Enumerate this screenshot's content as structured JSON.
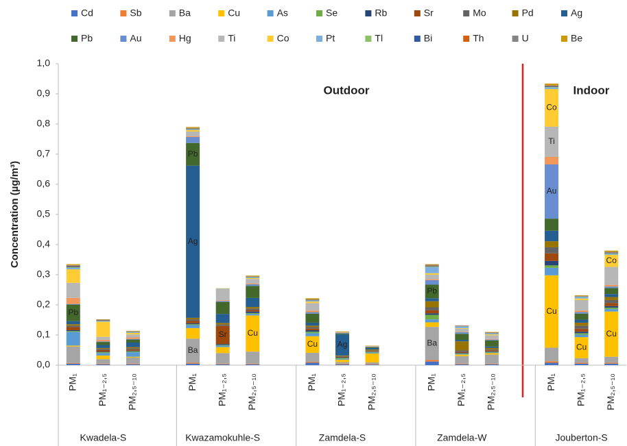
{
  "chart_data": {
    "type": "stacked_bar",
    "y_label": "Concentration (µg/m³)",
    "annotations": [
      "Outdoor",
      "Indoor"
    ],
    "categories": [
      "PM₁",
      "PM₁₋₂,₅",
      "PM₂,₅₋₁₀",
      null,
      "PM₁",
      "PM₁₋₂,₅",
      "PM₂,₅₋₁₀",
      null,
      "PM₁",
      "PM₁₋₂,₅",
      "PM₂,₅₋₁₀",
      null,
      "PM₁",
      "PM₁₋₂,₅",
      "PM₂,₅₋₁₀",
      null,
      "PM₁",
      "PM₁₋₂,₅",
      "PM₂,₅₋₁₀"
    ],
    "groups": [
      "Kwadela-S",
      "Kwazamokuhle-S",
      "Zamdela-S",
      "Zamdela-W",
      "Jouberton-S"
    ],
    "ylim": [
      0,
      1
    ],
    "yticks": [
      {
        "value": 0,
        "label": "0,0"
      },
      {
        "value": 0.1,
        "label": "0,1"
      },
      {
        "value": 0.2,
        "label": "0,2"
      },
      {
        "value": 0.3,
        "label": "0,3"
      },
      {
        "value": 0.4,
        "label": "0,4"
      },
      {
        "value": 0.5,
        "label": "0,5"
      },
      {
        "value": 0.6,
        "label": "0,6"
      },
      {
        "value": 0.7,
        "label": "0,7"
      },
      {
        "value": 0.8,
        "label": "0,8"
      },
      {
        "value": 0.9,
        "label": "0,9"
      },
      {
        "value": 1,
        "label": "1,0"
      }
    ],
    "grid": false,
    "legend": "top",
    "series": [
      {
        "name": "Cd",
        "color": "#4472c4",
        "values": [
          0.005,
          0.003,
          0.003,
          null,
          0.005,
          0.003,
          0.003,
          null,
          0.008,
          0.003,
          0.002,
          null,
          0.012,
          0.003,
          0.003,
          null,
          0.008,
          0.005,
          0.005
        ]
      },
      {
        "name": "Sb",
        "color": "#ed7d31",
        "values": [
          0.002,
          0.002,
          0.002,
          null,
          0.003,
          0.002,
          0.002,
          null,
          0.003,
          0.002,
          0.002,
          null,
          0.005,
          0.002,
          0.002,
          null,
          0.005,
          0.003,
          0.003
        ]
      },
      {
        "name": "Ba",
        "color": "#a5a5a5",
        "labeled_bars": [
          4,
          12
        ],
        "values": [
          0.055,
          0.015,
          0.02,
          null,
          0.08,
          0.035,
          0.04,
          null,
          0.03,
          0.005,
          0.005,
          null,
          0.11,
          0.025,
          0.03,
          null,
          0.045,
          0.015,
          0.02
        ]
      },
      {
        "name": "Cu",
        "color": "#ffc000",
        "labeled_bars": [
          6,
          8,
          16,
          17,
          18
        ],
        "values": [
          0.003,
          0.012,
          0.003,
          null,
          0.035,
          0.02,
          0.12,
          null,
          0.055,
          0.008,
          0.03,
          null,
          0.015,
          0.005,
          0.005,
          null,
          0.24,
          0.07,
          0.15
        ]
      },
      {
        "name": "As",
        "color": "#5b9bd5",
        "values": [
          0.045,
          0.008,
          0.015,
          null,
          0.01,
          0.005,
          0.005,
          null,
          0.01,
          0.003,
          0.003,
          null,
          0.01,
          0.002,
          0.002,
          null,
          0.025,
          0.008,
          0.008
        ]
      },
      {
        "name": "Se",
        "color": "#70ad47",
        "values": [
          0.003,
          0.003,
          0.003,
          null,
          0.003,
          0.002,
          0.003,
          null,
          0.005,
          0.003,
          0.002,
          null,
          0.015,
          0.002,
          0.002,
          null,
          0.008,
          0.005,
          0.005
        ]
      },
      {
        "name": "Rb",
        "color": "#264478",
        "values": [
          0.003,
          0.002,
          0.002,
          null,
          0.003,
          0.003,
          0.005,
          null,
          0.005,
          0.002,
          0.001,
          null,
          0.005,
          0.002,
          0.002,
          null,
          0.015,
          0.005,
          0.005
        ]
      },
      {
        "name": "Sr",
        "color": "#9e480e",
        "labeled_bars": [
          5
        ],
        "values": [
          0.01,
          0.005,
          0.004,
          null,
          0.008,
          0.06,
          0.005,
          null,
          0.005,
          0.002,
          0.002,
          null,
          0.01,
          0.003,
          0.003,
          null,
          0.025,
          0.01,
          0.01
        ]
      },
      {
        "name": "Mo",
        "color": "#636363",
        "values": [
          0.005,
          0.004,
          0.004,
          null,
          0.005,
          0.005,
          0.005,
          null,
          0.005,
          0.002,
          0.002,
          null,
          0.01,
          0.005,
          0.003,
          null,
          0.02,
          0.01,
          0.01
        ]
      },
      {
        "name": "Pd",
        "color": "#997300",
        "values": [
          0.005,
          0.003,
          0.004,
          null,
          0.005,
          0.005,
          0.005,
          null,
          0.005,
          0.002,
          0.003,
          null,
          0.02,
          0.03,
          0.005,
          null,
          0.02,
          0.01,
          0.01
        ]
      },
      {
        "name": "Ag",
        "color": "#255e91",
        "labeled_bars": [
          4,
          9
        ],
        "values": [
          0.01,
          0.01,
          0.015,
          null,
          0.505,
          0.03,
          0.03,
          null,
          0.01,
          0.07,
          0.005,
          null,
          0.01,
          0.005,
          0.005,
          null,
          0.035,
          0.01,
          0.01
        ]
      },
      {
        "name": "Pb",
        "color": "#43682b",
        "labeled_bars": [
          0,
          4,
          12
        ],
        "values": [
          0.055,
          0.01,
          0.01,
          null,
          0.075,
          0.04,
          0.04,
          null,
          0.03,
          0.003,
          0.003,
          null,
          0.045,
          0.02,
          0.02,
          null,
          0.04,
          0.02,
          0.02
        ]
      },
      {
        "name": "Au",
        "color": "#698ed0",
        "labeled_bars": [
          16
        ],
        "values": [
          0.002,
          0.002,
          0.002,
          null,
          0.02,
          0.003,
          0.005,
          null,
          0.005,
          0.002,
          0.001,
          null,
          0.015,
          0.005,
          0.003,
          null,
          0.18,
          0.005,
          0.005
        ]
      },
      {
        "name": "Hg",
        "color": "#f1975a",
        "values": [
          0.02,
          0.005,
          0.005,
          null,
          0.003,
          0.002,
          0.003,
          null,
          0.005,
          0.001,
          0.001,
          null,
          0.003,
          0.002,
          0.002,
          null,
          0.025,
          0.005,
          0.005
        ]
      },
      {
        "name": "Ti",
        "color": "#b7b7b7",
        "labeled_bars": [
          16
        ],
        "values": [
          0.05,
          0.01,
          0.01,
          null,
          0.015,
          0.038,
          0.015,
          null,
          0.025,
          0.002,
          0.002,
          null,
          0.015,
          0.01,
          0.012,
          null,
          0.1,
          0.035,
          0.06
        ]
      },
      {
        "name": "Co",
        "color": "#ffcd33",
        "labeled_bars": [
          16,
          18
        ],
        "values": [
          0.045,
          0.05,
          0.005,
          null,
          0.005,
          0,
          0.003,
          null,
          0.005,
          0,
          0,
          null,
          0.005,
          0.002,
          0.003,
          null,
          0.125,
          0.005,
          0.04
        ]
      },
      {
        "name": "Pt",
        "color": "#7cafdd",
        "values": [
          0.005,
          0.002,
          0.002,
          null,
          0.002,
          0.001,
          0.002,
          null,
          0.003,
          0,
          0,
          null,
          0.02,
          0.005,
          0.003,
          null,
          0.005,
          0.005,
          0.003
        ]
      },
      {
        "name": "Tl",
        "color": "#8cc168",
        "values": [
          0.002,
          0.001,
          0.001,
          null,
          0.001,
          0,
          0.001,
          null,
          0.001,
          0,
          0,
          null,
          0.002,
          0.001,
          0.001,
          null,
          0.002,
          0.001,
          0.002
        ]
      },
      {
        "name": "Bi",
        "color": "#335aa1",
        "values": [
          0.003,
          0.002,
          0.001,
          null,
          0.001,
          0,
          0.001,
          null,
          0.001,
          0,
          0,
          null,
          0.002,
          0.001,
          0.001,
          null,
          0.002,
          0.001,
          0.002
        ]
      },
      {
        "name": "Th",
        "color": "#d26012",
        "values": [
          0.002,
          0.001,
          0.001,
          null,
          0.001,
          0,
          0.001,
          null,
          0.001,
          0,
          0,
          null,
          0.002,
          0.001,
          0.001,
          null,
          0.002,
          0.001,
          0.001
        ]
      },
      {
        "name": "U",
        "color": "#848484",
        "values": [
          0.002,
          0.001,
          0.001,
          null,
          0.002,
          0,
          0.001,
          null,
          0.002,
          0,
          0,
          null,
          0.002,
          0.001,
          0.001,
          null,
          0.002,
          0.001,
          0.002
        ]
      },
      {
        "name": "Be",
        "color": "#cc9a00",
        "values": [
          0.003,
          0.001,
          0.001,
          null,
          0.003,
          0.001,
          0.002,
          null,
          0.003,
          0.002,
          0.001,
          null,
          0.002,
          0,
          0.001,
          null,
          0.005,
          0.002,
          0.004
        ]
      }
    ]
  }
}
